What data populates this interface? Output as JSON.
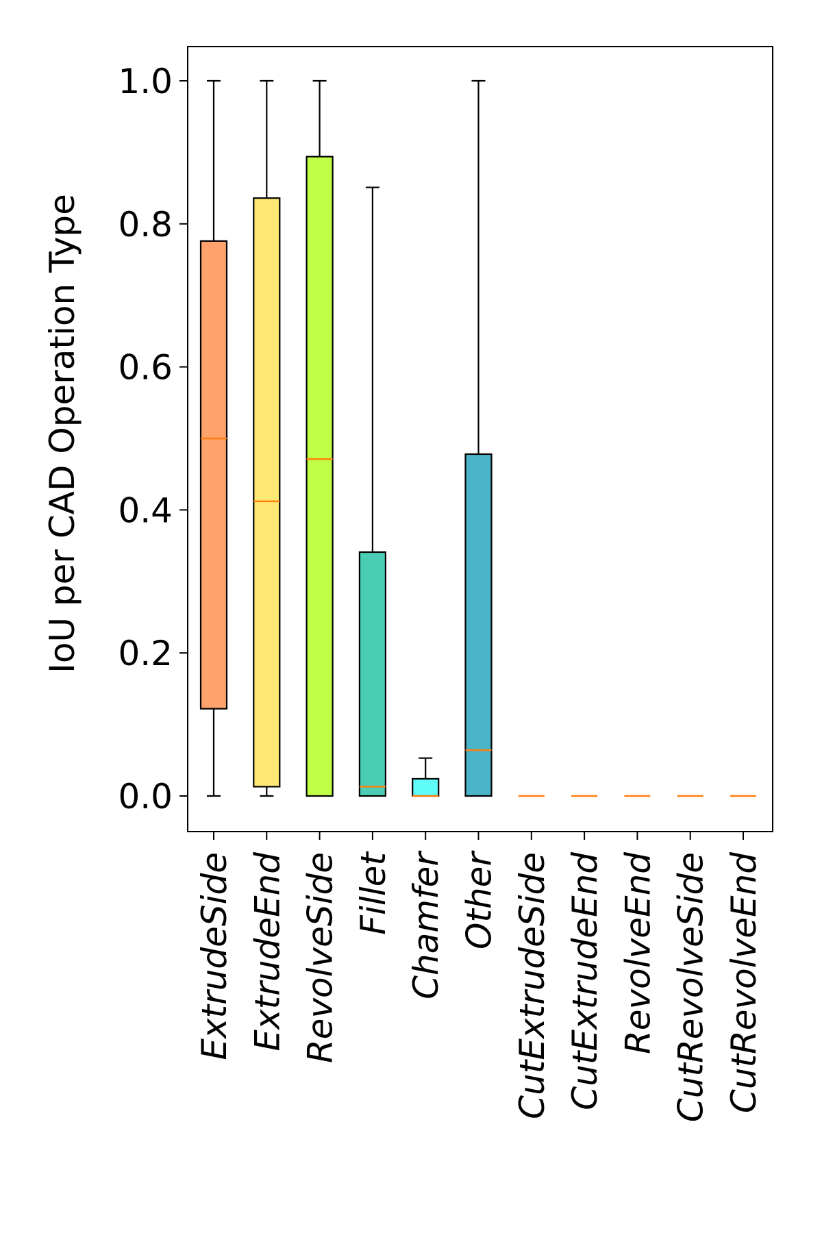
{
  "chart_data": {
    "type": "box",
    "ylabel": "IoU per CAD Operation Type",
    "xlabel": "",
    "title": "",
    "ylim": [
      -0.05,
      1.05
    ],
    "yticks": [
      0.0,
      0.2,
      0.4,
      0.6,
      0.8,
      1.0
    ],
    "ytick_labels": [
      "0.0",
      "0.2",
      "0.4",
      "0.6",
      "0.8",
      "1.0"
    ],
    "grid": false,
    "median_color": "#ff7f0e",
    "categories": [
      "ExtrudeSide",
      "ExtrudeEnd",
      "RevolveSide",
      "Fillet",
      "Chamfer",
      "Other",
      "CutExtrudeSide",
      "CutExtrudeEnd",
      "RevolveEnd",
      "CutRevolveSide",
      "CutRevolveEnd"
    ],
    "boxes": [
      {
        "whisker_low": 0.0,
        "q1": 0.122,
        "median": 0.5,
        "q3": 0.776,
        "whisker_high": 1.0,
        "color": "#ffa26b"
      },
      {
        "whisker_low": 0.0,
        "q1": 0.013,
        "median": 0.412,
        "q3": 0.836,
        "whisker_high": 1.0,
        "color": "#ffe873"
      },
      {
        "whisker_low": 0.0,
        "q1": 0.0,
        "median": 0.471,
        "q3": 0.894,
        "whisker_high": 1.0,
        "color": "#c1ff47"
      },
      {
        "whisker_low": 0.0,
        "q1": 0.0,
        "median": 0.013,
        "q3": 0.341,
        "whisker_high": 0.851,
        "color": "#4bcdb5"
      },
      {
        "whisker_low": 0.0,
        "q1": 0.0,
        "median": 0.0,
        "q3": 0.024,
        "whisker_high": 0.053,
        "color": "#5ffcfa"
      },
      {
        "whisker_low": 0.0,
        "q1": 0.0,
        "median": 0.064,
        "q3": 0.478,
        "whisker_high": 1.0,
        "color": "#4ab4c8"
      },
      {
        "whisker_low": 0.0,
        "q1": 0.0,
        "median": 0.0,
        "q3": 0.0,
        "whisker_high": 0.0,
        "color": "#4ab4c8"
      },
      {
        "whisker_low": 0.0,
        "q1": 0.0,
        "median": 0.0,
        "q3": 0.0,
        "whisker_high": 0.0,
        "color": "#4ab4c8"
      },
      {
        "whisker_low": 0.0,
        "q1": 0.0,
        "median": 0.0,
        "q3": 0.0,
        "whisker_high": 0.0,
        "color": "#4ab4c8"
      },
      {
        "whisker_low": 0.0,
        "q1": 0.0,
        "median": 0.0,
        "q3": 0.0,
        "whisker_high": 0.0,
        "color": "#4ab4c8"
      },
      {
        "whisker_low": 0.0,
        "q1": 0.0,
        "median": 0.0,
        "q3": 0.0,
        "whisker_high": 0.0,
        "color": "#4ab4c8"
      }
    ]
  }
}
